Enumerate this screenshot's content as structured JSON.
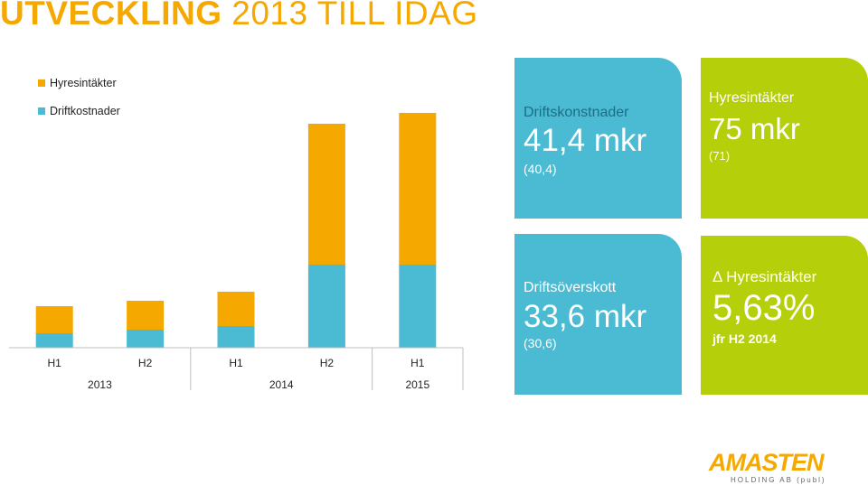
{
  "header": {
    "title_bold": "UTVECKLING",
    "title_light": "2013 TILL IDAG"
  },
  "colors": {
    "orange": "#f5a800",
    "blue": "#4abbd3",
    "green": "#b5cf0a"
  },
  "chart_data": {
    "type": "bar",
    "stacked": true,
    "categories": [
      "H1",
      "H2",
      "H1",
      "H2",
      "H1"
    ],
    "year_groups": [
      {
        "label": "2013",
        "span": [
          0,
          1
        ]
      },
      {
        "label": "2014",
        "span": [
          2,
          3
        ]
      },
      {
        "label": "2015",
        "span": [
          4,
          4
        ]
      }
    ],
    "series": [
      {
        "name": "Driftkostnader",
        "color": "#4abbd3",
        "values": [
          4,
          5,
          6,
          23,
          23
        ]
      },
      {
        "name": "Hyresintäkter",
        "color": "#f5a800",
        "values": [
          7.5,
          8,
          9.5,
          39,
          42
        ]
      }
    ],
    "legend_order": [
      "Hyresintäkter",
      "Driftkostnader"
    ],
    "ylim": [
      0,
      70
    ],
    "legend_position": "top-left",
    "grid": false
  },
  "cards": [
    {
      "id": "driftskostnader",
      "color": "#4abbd3",
      "title": "Driftskonstnader",
      "value": "41,4 mkr",
      "sub": "(40,4)"
    },
    {
      "id": "hyresintakter",
      "color": "#b5cf0a",
      "title": "Hyresintäkter",
      "value": "75 mkr",
      "sub": "(71)"
    },
    {
      "id": "driftsoverskott",
      "color": "#4abbd3",
      "title": "Driftsöverskott",
      "value": "33,6 mkr",
      "sub": "(30,6)"
    },
    {
      "id": "hyresintakter-change",
      "color": "#b5cf0a",
      "title": "Δ Hyresintäkter",
      "value": "5,63%",
      "sub": "jfr H2 2014"
    }
  ],
  "logo": {
    "name": "AMASTEN",
    "sub": "HOLDING AB (publ)"
  }
}
